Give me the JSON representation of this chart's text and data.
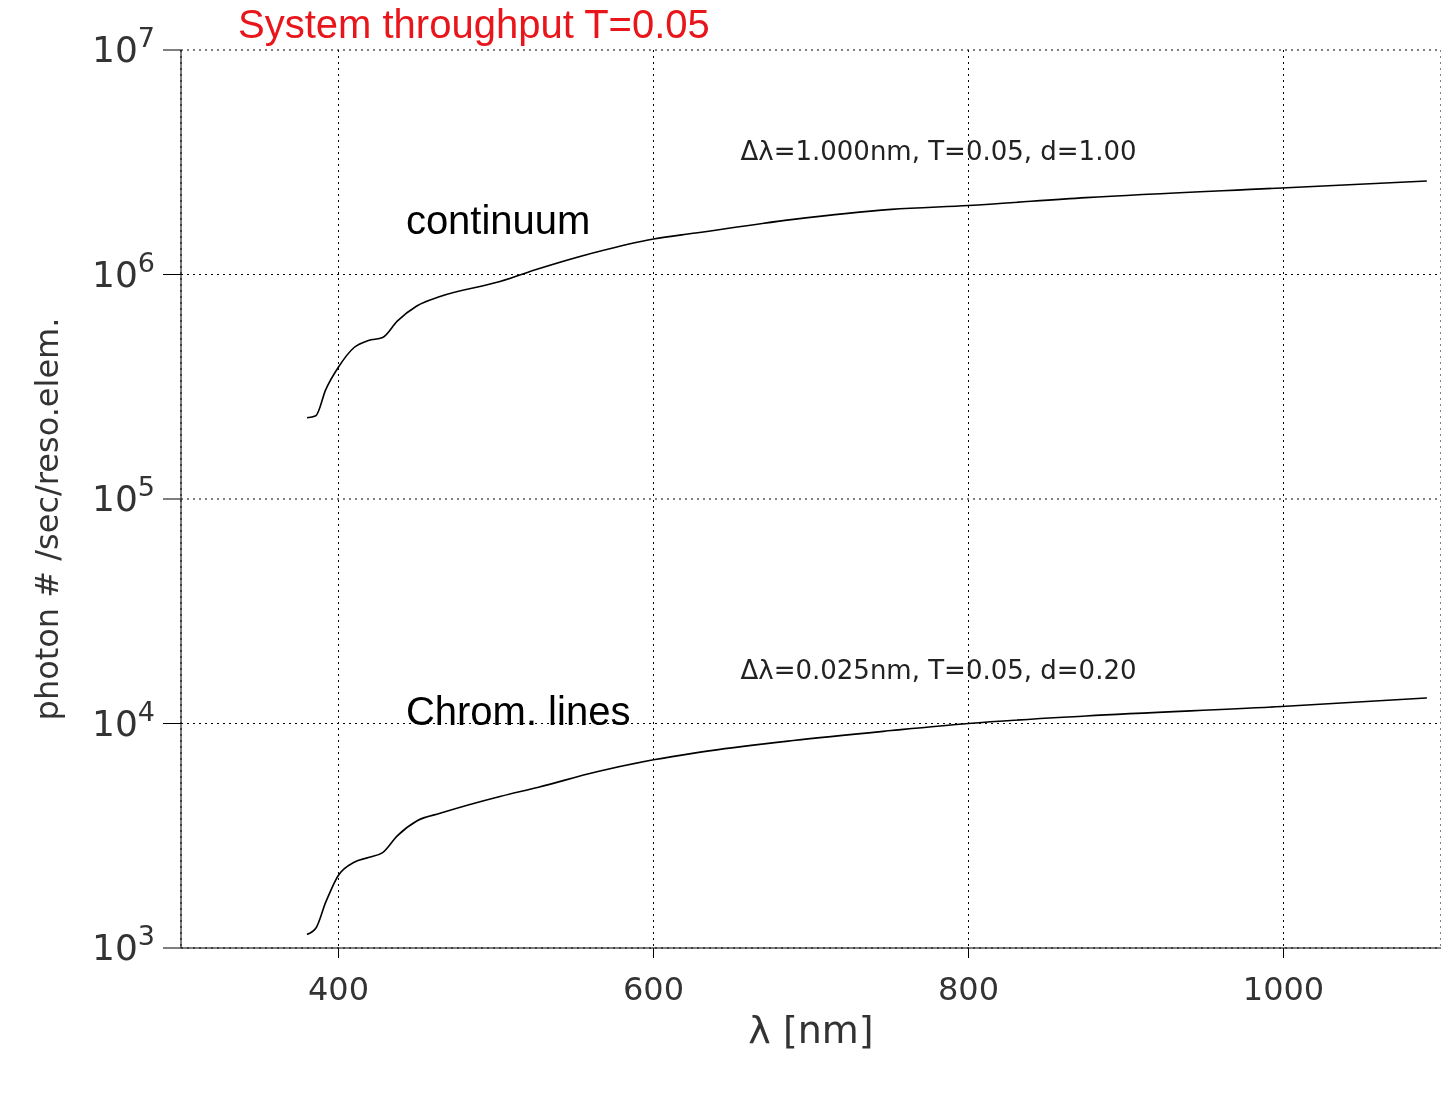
{
  "chart_data": {
    "type": "line",
    "title": "System throughput T=0.05",
    "xlabel": "λ [nm]",
    "ylabel": "photon #  /sec/reso.elem.",
    "x": [
      380,
      385.6,
      391.9,
      400,
      409.9,
      419,
      428,
      437.3,
      449.7,
      465,
      502.5,
      527,
      564,
      600,
      626.7,
      688.8,
      751,
      800,
      874.5,
      998.8,
      1091
    ],
    "series": [
      {
        "name": "continuum",
        "color": "#000000",
        "values": [
          230000,
          235000,
          307000,
          387000,
          473000,
          508000,
          524000,
          620000,
          724000,
          800000,
          930000,
          1060000,
          1260000,
          1440000,
          1530000,
          1760000,
          1950000,
          2030000,
          2200000,
          2430000,
          2610000
        ]
      },
      {
        "name": "Chrom. lines",
        "color": "#000000",
        "values": [
          1150,
          1224,
          1600,
          2110,
          2410,
          2530,
          2660,
          3160,
          3680,
          3990,
          4730,
          5200,
          6100,
          6890,
          7400,
          8400,
          9300,
          10000,
          10800,
          11900,
          13000
        ]
      }
    ],
    "annotations": [
      "Δλ=1.000nm, T=0.05, d=1.00",
      "Δλ=0.025nm, T=0.05, d=0.20"
    ],
    "log": "y",
    "xlim": [
      300,
      1100
    ],
    "ylim": [
      1000,
      10000000
    ],
    "xticks": [
      400,
      600,
      800,
      1000
    ],
    "yticks": [
      {
        "value": 1000,
        "label": "10$^{3}$"
      },
      {
        "value": 10000,
        "label": "10$^{4}$"
      },
      {
        "value": 100000,
        "label": "10$^{5}$"
      },
      {
        "value": 1000000,
        "label": "10$^{6}$"
      },
      {
        "value": 10000000,
        "label": "10$^{7}$"
      }
    ],
    "grid": true,
    "marker": "none",
    "line_style": "solid"
  }
}
